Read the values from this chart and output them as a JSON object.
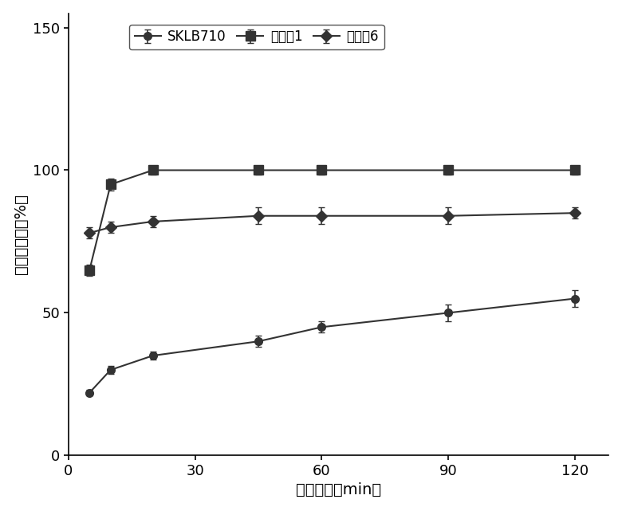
{
  "title": "",
  "xlabel": "取样时间（min）",
  "ylabel": "溢出百分率（%）",
  "xlim": [
    0,
    128
  ],
  "ylim": [
    0,
    155
  ],
  "xticks": [
    0,
    30,
    60,
    90,
    120
  ],
  "yticks": [
    0,
    50,
    100,
    150
  ],
  "series": [
    {
      "label": "SKLB710",
      "x": [
        5,
        10,
        20,
        45,
        60,
        90,
        120
      ],
      "y": [
        22,
        30,
        35,
        40,
        45,
        50,
        55
      ],
      "yerr": [
        1,
        1.5,
        1.5,
        2,
        2,
        3,
        3
      ],
      "color": "#333333",
      "marker": "o",
      "markersize": 7,
      "linewidth": 1.5
    },
    {
      "label": "实施例1",
      "x": [
        5,
        10,
        20,
        45,
        60,
        90,
        120
      ],
      "y": [
        65,
        95,
        100,
        100,
        100,
        100,
        100
      ],
      "yerr": [
        2,
        2,
        1.5,
        1.5,
        1.5,
        1.5,
        1.5
      ],
      "color": "#333333",
      "marker": "s",
      "markersize": 8,
      "linewidth": 1.5
    },
    {
      "label": "实施例6",
      "x": [
        5,
        10,
        20,
        45,
        60,
        90,
        120
      ],
      "y": [
        78,
        80,
        82,
        84,
        84,
        84,
        85
      ],
      "yerr": [
        2,
        2,
        2,
        3,
        3,
        3,
        2
      ],
      "color": "#333333",
      "marker": "D",
      "markersize": 7,
      "linewidth": 1.5
    }
  ],
  "legend_fontsize": 12,
  "axis_fontsize": 14,
  "tick_fontsize": 13,
  "background_color": "#ffffff",
  "figure_width": 7.8,
  "figure_height": 6.41
}
